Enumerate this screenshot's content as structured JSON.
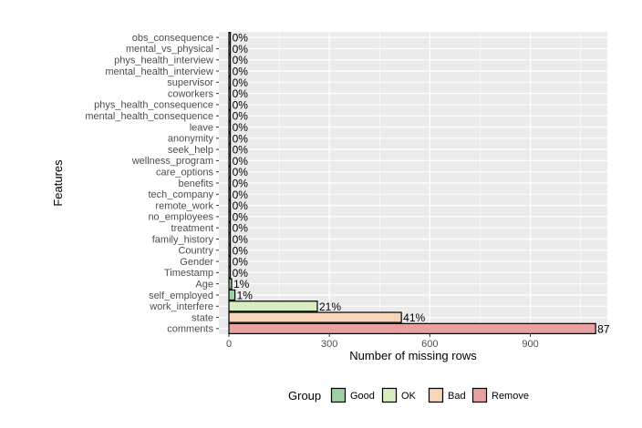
{
  "chart_data": {
    "type": "bar",
    "orientation": "horizontal",
    "xlabel": "Number of missing rows",
    "ylabel": "Features",
    "xlim": [
      -30,
      1130
    ],
    "xticks": [
      0,
      300,
      600,
      900
    ],
    "grid": true,
    "legend_position": "bottom",
    "legend": {
      "title": "Group",
      "entries": [
        {
          "label": "Good",
          "color": "#9ecfa3"
        },
        {
          "label": "OK",
          "color": "#d8eec1"
        },
        {
          "label": "Bad",
          "color": "#f6d6b8"
        },
        {
          "label": "Remove",
          "color": "#e8a0a0"
        }
      ]
    },
    "bars": [
      {
        "category": "comments",
        "value": 1095,
        "label": "87",
        "group": "Remove"
      },
      {
        "category": "state",
        "value": 515,
        "label": "41%",
        "group": "Bad"
      },
      {
        "category": "work_interfere",
        "value": 264,
        "label": "21%",
        "group": "OK"
      },
      {
        "category": "self_employed",
        "value": 18,
        "label": "1%",
        "group": "Good"
      },
      {
        "category": "Age",
        "value": 8,
        "label": "1%",
        "group": "Good"
      },
      {
        "category": "Timestamp",
        "value": 0,
        "label": "0%",
        "group": "Good"
      },
      {
        "category": "Gender",
        "value": 0,
        "label": "0%",
        "group": "Good"
      },
      {
        "category": "Country",
        "value": 0,
        "label": "0%",
        "group": "Good"
      },
      {
        "category": "family_history",
        "value": 0,
        "label": "0%",
        "group": "Good"
      },
      {
        "category": "treatment",
        "value": 0,
        "label": "0%",
        "group": "Good"
      },
      {
        "category": "no_employees",
        "value": 0,
        "label": "0%",
        "group": "Good"
      },
      {
        "category": "remote_work",
        "value": 0,
        "label": "0%",
        "group": "Good"
      },
      {
        "category": "tech_company",
        "value": 0,
        "label": "0%",
        "group": "Good"
      },
      {
        "category": "benefits",
        "value": 0,
        "label": "0%",
        "group": "Good"
      },
      {
        "category": "care_options",
        "value": 0,
        "label": "0%",
        "group": "Good"
      },
      {
        "category": "wellness_program",
        "value": 0,
        "label": "0%",
        "group": "Good"
      },
      {
        "category": "seek_help",
        "value": 0,
        "label": "0%",
        "group": "Good"
      },
      {
        "category": "anonymity",
        "value": 0,
        "label": "0%",
        "group": "Good"
      },
      {
        "category": "leave",
        "value": 0,
        "label": "0%",
        "group": "Good"
      },
      {
        "category": "mental_health_consequence",
        "value": 0,
        "label": "0%",
        "group": "Good"
      },
      {
        "category": "phys_health_consequence",
        "value": 0,
        "label": "0%",
        "group": "Good"
      },
      {
        "category": "coworkers",
        "value": 0,
        "label": "0%",
        "group": "Good"
      },
      {
        "category": "supervisor",
        "value": 0,
        "label": "0%",
        "group": "Good"
      },
      {
        "category": "mental_health_interview",
        "value": 0,
        "label": "0%",
        "group": "Good"
      },
      {
        "category": "phys_health_interview",
        "value": 0,
        "label": "0%",
        "group": "Good"
      },
      {
        "category": "mental_vs_physical",
        "value": 0,
        "label": "0%",
        "group": "Good"
      },
      {
        "category": "obs_consequence",
        "value": 0,
        "label": "0%",
        "group": "Good"
      }
    ]
  }
}
